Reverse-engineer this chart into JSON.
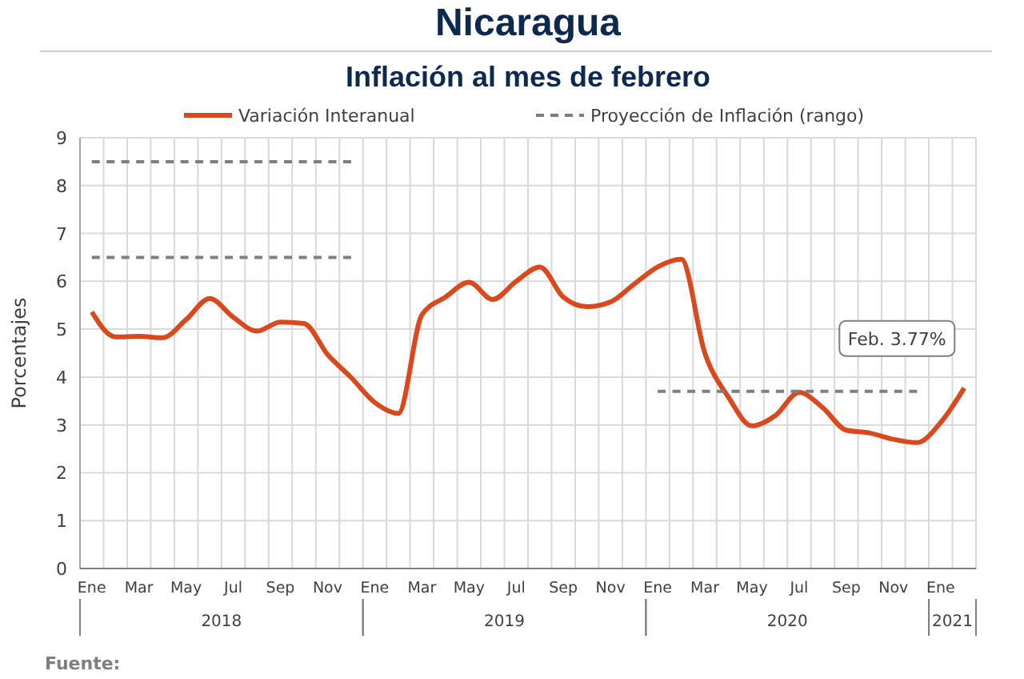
{
  "chart_data": {
    "type": "line",
    "title": "Nicaragua",
    "subtitle": "Inflación al mes de febrero",
    "ylabel": "Porcentajes",
    "categories": [
      "Ene",
      null,
      "Mar",
      null,
      "May",
      null,
      "Jul",
      null,
      "Sep",
      null,
      "Nov",
      null,
      "Ene",
      null,
      "Mar",
      null,
      "May",
      null,
      "Jul",
      null,
      "Sep",
      null,
      "Nov",
      null,
      "Ene",
      null,
      "Mar",
      null,
      "May",
      null,
      "Jul",
      null,
      "Sep",
      null,
      "Nov",
      null,
      "Ene",
      null
    ],
    "series": [
      {
        "name": "Variación Interanual",
        "color": "#d84a1e",
        "line_style": "solid",
        "values": [
          5.36,
          4.84,
          4.85,
          4.82,
          5.2,
          5.64,
          5.25,
          4.96,
          5.15,
          5.12,
          4.47,
          3.99,
          3.47,
          3.24,
          5.3,
          5.67,
          5.98,
          5.62,
          6.0,
          6.3,
          5.67,
          5.47,
          5.57,
          5.94,
          6.3,
          6.46,
          4.5,
          3.58,
          2.98,
          3.2,
          3.68,
          3.36,
          2.89,
          2.83,
          2.7,
          2.63,
          3.05,
          3.77
        ]
      },
      {
        "name": "Proyección de Inflación (rango)",
        "color": "#7f7f7f",
        "line_style": "dashed",
        "values": [
          8.5,
          8.5,
          8.5,
          8.5,
          8.5,
          8.5,
          8.5,
          8.5,
          8.5,
          8.5,
          8.5,
          8.5,
          null,
          null,
          null,
          null,
          null,
          null,
          null,
          null,
          null,
          null,
          null,
          null,
          3.7,
          3.7,
          3.7,
          3.7,
          3.7,
          3.7,
          3.7,
          3.7,
          3.7,
          3.7,
          3.7,
          3.7,
          null,
          null
        ]
      },
      {
        "color": "#7f7f7f",
        "line_style": "dashed",
        "values": [
          6.5,
          6.5,
          6.5,
          6.5,
          6.5,
          6.5,
          6.5,
          6.5,
          6.5,
          6.5,
          6.5,
          6.5,
          null,
          null,
          null,
          null,
          null,
          null,
          null,
          null,
          null,
          null,
          null,
          null,
          null,
          null,
          null,
          null,
          null,
          null,
          null,
          null,
          null,
          null,
          null,
          null,
          null,
          null
        ]
      }
    ],
    "ylim": [
      0,
      9
    ],
    "yticks": [
      0,
      1,
      2,
      3,
      4,
      5,
      6,
      7,
      8,
      9
    ],
    "grid": true,
    "legend": "top",
    "annotations": [
      "Feb. 3.77%",
      "2018",
      "2019",
      "2020",
      "2021",
      "Fuente:"
    ]
  }
}
